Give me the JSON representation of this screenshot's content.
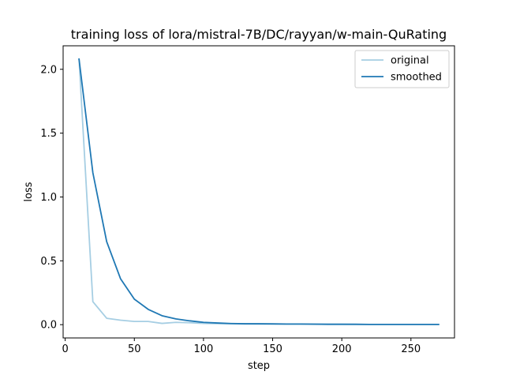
{
  "chart_data": {
    "type": "line",
    "title": "training loss of lora/mistral-7B/DC/rayyan/w-main-QuRating",
    "xlabel": "step",
    "ylabel": "loss",
    "xlim": [
      -1.5,
      281.5
    ],
    "ylim": [
      -0.104,
      2.184
    ],
    "xticks": [
      0,
      50,
      100,
      150,
      200,
      250
    ],
    "yticks": [
      0.0,
      0.5,
      1.0,
      1.5,
      2.0
    ],
    "xtick_labels": [
      "0",
      "50",
      "100",
      "150",
      "200",
      "250"
    ],
    "ytick_labels": [
      "0.0",
      "0.5",
      "1.0",
      "1.5",
      "2.0"
    ],
    "grid": false,
    "legend_position": "upper right",
    "x": [
      10,
      20,
      30,
      40,
      50,
      60,
      70,
      80,
      90,
      100,
      110,
      120,
      130,
      140,
      150,
      160,
      170,
      180,
      190,
      200,
      210,
      220,
      230,
      240,
      250,
      260,
      270
    ],
    "series": [
      {
        "name": "original",
        "color": "#a6cee3",
        "values": [
          2.08,
          0.18,
          0.05,
          0.035,
          0.025,
          0.025,
          0.01,
          0.018,
          0.015,
          0.01,
          0.008,
          0.007,
          0.006,
          0.005,
          0.005,
          0.004,
          0.004,
          0.003,
          0.003,
          0.003,
          0.002,
          0.002,
          0.002,
          0.002,
          0.002,
          0.002,
          0.002
        ]
      },
      {
        "name": "smoothed",
        "color": "#1f78b4",
        "values": [
          2.08,
          1.19,
          0.65,
          0.36,
          0.2,
          0.12,
          0.07,
          0.045,
          0.03,
          0.018,
          0.013,
          0.009,
          0.007,
          0.007,
          0.006,
          0.005,
          0.005,
          0.004,
          0.003,
          0.003,
          0.003,
          0.002,
          0.002,
          0.002,
          0.002,
          0.002,
          0.002
        ]
      }
    ]
  }
}
